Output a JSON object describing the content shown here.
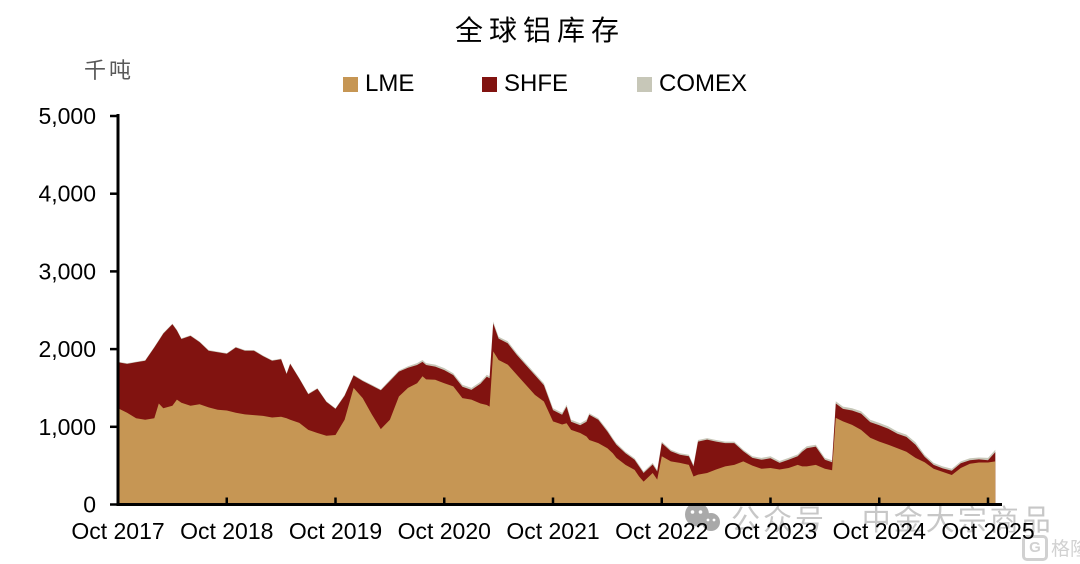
{
  "title": "全球铝库存",
  "y_axis": {
    "unit": "千吨",
    "tick_labels": [
      "0",
      "1,000",
      "2,000",
      "3,000",
      "4,000",
      "5,000"
    ],
    "min": 0,
    "max": 5000,
    "step": 1000
  },
  "x_axis": {
    "tick_labels": [
      "Oct 2017",
      "Oct 2018",
      "Oct 2019",
      "Oct 2020",
      "Oct 2021",
      "Oct 2022",
      "Oct 2023",
      "Oct 2024",
      "Oct 2025"
    ]
  },
  "legend": [
    {
      "label": "LME",
      "color": "#C69654"
    },
    {
      "label": "SHFE",
      "color": "#811310"
    },
    {
      "label": "COMEX",
      "color": "#C7C7B8"
    }
  ],
  "colors": {
    "axis": "#000000",
    "tick_text": "#000000",
    "unit_text": "#595959",
    "watermark": "#c7c7c7"
  },
  "watermark": {
    "text": "公众号 · 中金大宗商品",
    "logo_text": "格隆汇",
    "logo_letter": "G"
  },
  "chart_data": {
    "type": "area",
    "stacked": true,
    "title": "全球铝库存",
    "ylabel": "千吨",
    "ylim": [
      0,
      5000
    ],
    "grid": false,
    "legend_position": "top",
    "x_unit": "months since Oct 2017 (Oct 2017 = 0, Oct 2025 = 96)",
    "series_names": [
      "LME",
      "SHFE",
      "COMEX"
    ],
    "points_format": [
      "month_index",
      "LME_kt",
      "SHFE_kt",
      "COMEX_kt"
    ],
    "points": [
      [
        0,
        1240,
        590,
        8
      ],
      [
        1,
        1180,
        630,
        8
      ],
      [
        2,
        1110,
        720,
        8
      ],
      [
        3,
        1090,
        760,
        8
      ],
      [
        4,
        1110,
        910,
        8
      ],
      [
        4.5,
        1300,
        810,
        8
      ],
      [
        5,
        1240,
        960,
        8
      ],
      [
        6,
        1270,
        1050,
        8
      ],
      [
        6.5,
        1350,
        890,
        8
      ],
      [
        7,
        1310,
        820,
        8
      ],
      [
        8,
        1270,
        900,
        8
      ],
      [
        9,
        1290,
        800,
        8
      ],
      [
        10,
        1250,
        730,
        8
      ],
      [
        11,
        1220,
        740,
        8
      ],
      [
        12,
        1210,
        730,
        8
      ],
      [
        13,
        1180,
        840,
        8
      ],
      [
        14,
        1160,
        820,
        8
      ],
      [
        15,
        1150,
        830,
        8
      ],
      [
        16,
        1140,
        770,
        8
      ],
      [
        17,
        1120,
        730,
        8
      ],
      [
        18,
        1130,
        740,
        8
      ],
      [
        18.6,
        1110,
        570,
        8
      ],
      [
        19,
        1090,
        720,
        8
      ],
      [
        20,
        1050,
        570,
        8
      ],
      [
        21,
        960,
        460,
        8
      ],
      [
        22,
        920,
        570,
        8
      ],
      [
        23,
        885,
        435,
        8
      ],
      [
        24,
        895,
        335,
        10
      ],
      [
        25,
        1090,
        310,
        10
      ],
      [
        26,
        1500,
        160,
        10
      ],
      [
        27,
        1370,
        220,
        10
      ],
      [
        28,
        1160,
        370,
        10
      ],
      [
        29,
        970,
        500,
        10
      ],
      [
        30,
        1090,
        500,
        15
      ],
      [
        31,
        1390,
        320,
        15
      ],
      [
        32,
        1500,
        260,
        20
      ],
      [
        33,
        1560,
        235,
        25
      ],
      [
        33.6,
        1650,
        185,
        25
      ],
      [
        34,
        1610,
        185,
        25
      ],
      [
        35,
        1605,
        170,
        25
      ],
      [
        36,
        1560,
        170,
        25
      ],
      [
        37,
        1520,
        145,
        25
      ],
      [
        38,
        1370,
        145,
        25
      ],
      [
        39,
        1350,
        125,
        25
      ],
      [
        40,
        1300,
        255,
        25
      ],
      [
        40.7,
        1280,
        365,
        25
      ],
      [
        41,
        1260,
        365,
        25
      ],
      [
        41.4,
        1970,
        360,
        25
      ],
      [
        42,
        1860,
        275,
        25
      ],
      [
        43,
        1800,
        275,
        25
      ],
      [
        44,
        1670,
        255,
        25
      ],
      [
        45,
        1540,
        255,
        25
      ],
      [
        46,
        1410,
        255,
        25
      ],
      [
        47,
        1325,
        210,
        25
      ],
      [
        48,
        1070,
        145,
        25
      ],
      [
        49,
        1030,
        125,
        25
      ],
      [
        49.5,
        1045,
        215,
        25
      ],
      [
        50,
        960,
        105,
        25
      ],
      [
        51,
        920,
        100,
        25
      ],
      [
        51.7,
        875,
        190,
        25
      ],
      [
        52,
        830,
        325,
        20
      ],
      [
        53,
        790,
        300,
        20
      ],
      [
        54,
        725,
        215,
        20
      ],
      [
        54.6,
        660,
        175,
        20
      ],
      [
        55,
        600,
        170,
        20
      ],
      [
        56,
        510,
        150,
        20
      ],
      [
        57,
        445,
        130,
        20
      ],
      [
        57.5,
        360,
        130,
        20
      ],
      [
        58,
        295,
        110,
        20
      ],
      [
        59,
        405,
        110,
        20
      ],
      [
        59.5,
        320,
        105,
        20
      ],
      [
        60,
        620,
        170,
        20
      ],
      [
        61,
        555,
        130,
        20
      ],
      [
        62,
        535,
        105,
        20
      ],
      [
        63,
        510,
        110,
        20
      ],
      [
        63.5,
        360,
        130,
        20
      ],
      [
        64,
        385,
        425,
        20
      ],
      [
        65,
        405,
        430,
        20
      ],
      [
        66,
        450,
        360,
        20
      ],
      [
        67,
        490,
        300,
        20
      ],
      [
        68,
        510,
        280,
        20
      ],
      [
        69,
        555,
        130,
        20
      ],
      [
        70,
        500,
        100,
        20
      ],
      [
        71,
        460,
        115,
        25
      ],
      [
        72,
        470,
        125,
        25
      ],
      [
        73,
        450,
        85,
        25
      ],
      [
        74,
        470,
        105,
        25
      ],
      [
        75,
        510,
        110,
        25
      ],
      [
        75.5,
        490,
        190,
        25
      ],
      [
        76,
        490,
        235,
        25
      ],
      [
        77,
        510,
        235,
        25
      ],
      [
        78,
        460,
        115,
        25
      ],
      [
        78.8,
        440,
        105,
        25
      ],
      [
        79.2,
        1115,
        185,
        30
      ],
      [
        80,
        1070,
        160,
        30
      ],
      [
        81,
        1025,
        185,
        30
      ],
      [
        82,
        960,
        210,
        30
      ],
      [
        83,
        860,
        200,
        30
      ],
      [
        84,
        810,
        210,
        30
      ],
      [
        85,
        770,
        205,
        30
      ],
      [
        86,
        725,
        185,
        30
      ],
      [
        87,
        680,
        190,
        30
      ],
      [
        88,
        600,
        170,
        30
      ],
      [
        89,
        545,
        70,
        25
      ],
      [
        90,
        460,
        50,
        25
      ],
      [
        91,
        420,
        45,
        25
      ],
      [
        92,
        380,
        55,
        25
      ],
      [
        93,
        470,
        60,
        25
      ],
      [
        94,
        525,
        45,
        25
      ],
      [
        95,
        540,
        40,
        25
      ],
      [
        96,
        540,
        30,
        30
      ],
      [
        96.8,
        555,
        120,
        30
      ]
    ]
  }
}
